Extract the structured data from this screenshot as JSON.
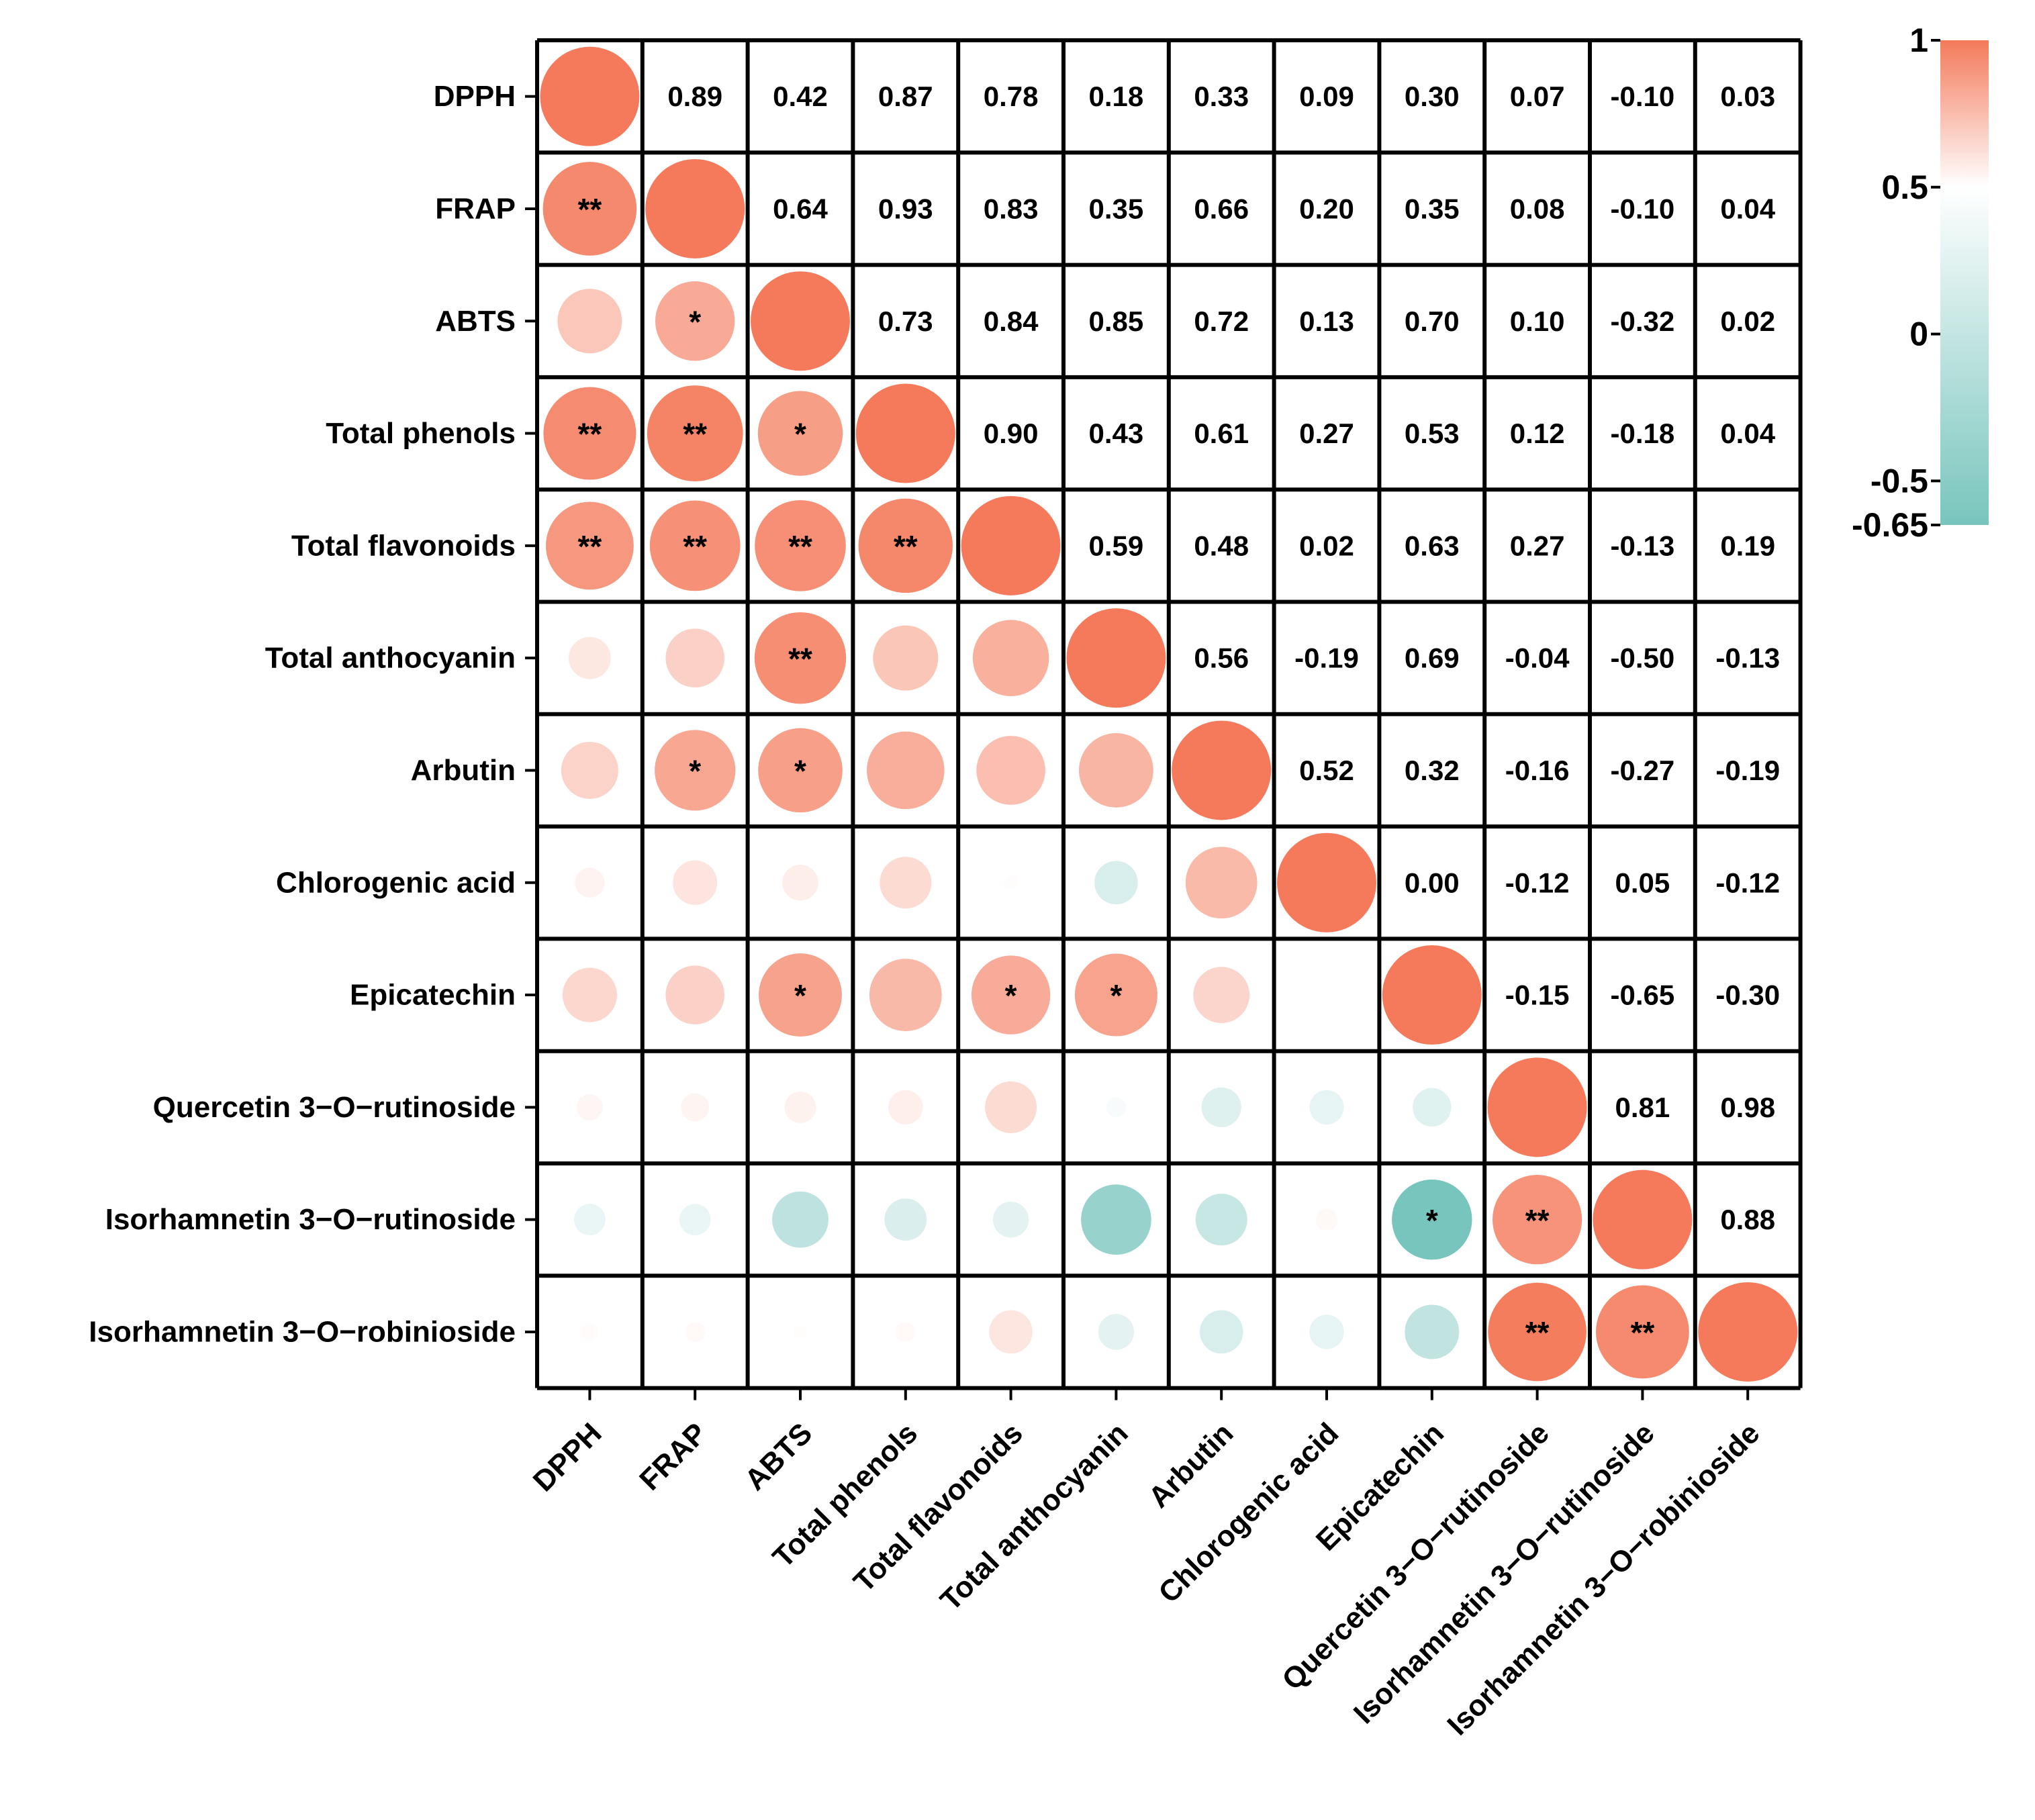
{
  "chart_data": {
    "type": "heatmap",
    "variables": [
      "DPPH",
      "FRAP",
      "ABTS",
      "Total phenols",
      "Total flavonoids",
      "Total anthocyanin",
      "Arbutin",
      "Chlorogenic acid",
      "Epicatechin",
      "Quercetin 3−O−rutinoside",
      "Isorhamnetin 3−O−rutinoside",
      "Isorhamnetin 3−O−robinioside"
    ],
    "matrix": [
      [
        1.0,
        0.89,
        0.42,
        0.87,
        0.78,
        0.18,
        0.33,
        0.09,
        0.3,
        0.07,
        -0.1,
        0.03
      ],
      [
        0.89,
        1.0,
        0.64,
        0.93,
        0.83,
        0.35,
        0.66,
        0.2,
        0.35,
        0.08,
        -0.1,
        0.04
      ],
      [
        0.42,
        0.64,
        1.0,
        0.73,
        0.84,
        0.85,
        0.72,
        0.13,
        0.7,
        0.1,
        -0.32,
        0.02
      ],
      [
        0.87,
        0.93,
        0.73,
        1.0,
        0.9,
        0.43,
        0.61,
        0.27,
        0.53,
        0.12,
        -0.18,
        0.04
      ],
      [
        0.78,
        0.83,
        0.84,
        0.9,
        1.0,
        0.59,
        0.48,
        0.02,
        0.63,
        0.27,
        -0.13,
        0.19
      ],
      [
        0.18,
        0.35,
        0.85,
        0.43,
        0.59,
        1.0,
        0.56,
        -0.19,
        0.69,
        -0.04,
        -0.5,
        -0.13
      ],
      [
        0.33,
        0.66,
        0.72,
        0.61,
        0.48,
        0.56,
        1.0,
        0.52,
        0.32,
        -0.16,
        -0.27,
        -0.19
      ],
      [
        0.09,
        0.2,
        0.13,
        0.27,
        0.02,
        -0.19,
        0.52,
        1.0,
        0.0,
        -0.12,
        0.05,
        -0.12
      ],
      [
        0.3,
        0.35,
        0.7,
        0.53,
        0.63,
        0.69,
        0.32,
        0.0,
        1.0,
        -0.15,
        -0.65,
        -0.3
      ],
      [
        0.07,
        0.08,
        0.1,
        0.12,
        0.27,
        -0.04,
        -0.16,
        -0.12,
        -0.15,
        1.0,
        0.81,
        0.98
      ],
      [
        -0.1,
        -0.1,
        -0.32,
        -0.18,
        -0.13,
        -0.5,
        -0.27,
        0.05,
        -0.65,
        0.81,
        1.0,
        0.88
      ],
      [
        0.03,
        0.04,
        0.02,
        0.04,
        0.19,
        -0.13,
        -0.19,
        -0.12,
        -0.3,
        0.98,
        0.88,
        1.0
      ]
    ],
    "significance": [
      [
        "",
        "",
        "",
        "",
        "",
        "",
        "",
        "",
        "",
        "",
        "",
        ""
      ],
      [
        "**",
        "",
        "",
        "",
        "",
        "",
        "",
        "",
        "",
        "",
        "",
        ""
      ],
      [
        "",
        "*",
        "",
        "",
        "",
        "",
        "",
        "",
        "",
        "",
        "",
        ""
      ],
      [
        "**",
        "**",
        "*",
        "",
        "",
        "",
        "",
        "",
        "",
        "",
        "",
        ""
      ],
      [
        "**",
        "**",
        "**",
        "**",
        "",
        "",
        "",
        "",
        "",
        "",
        "",
        ""
      ],
      [
        "",
        "",
        "**",
        "",
        "",
        "",
        "",
        "",
        "",
        "",
        "",
        ""
      ],
      [
        "",
        "*",
        "*",
        "",
        "",
        "",
        "",
        "",
        "",
        "",
        "",
        ""
      ],
      [
        "",
        "",
        "",
        "",
        "",
        "",
        "",
        "",
        "",
        "",
        "",
        ""
      ],
      [
        "",
        "",
        "*",
        "",
        "*",
        "*",
        "",
        "",
        "",
        "",
        "",
        ""
      ],
      [
        "",
        "",
        "",
        "",
        "",
        "",
        "",
        "",
        "",
        "",
        "",
        ""
      ],
      [
        "",
        "",
        "",
        "",
        "",
        "",
        "",
        "",
        "*",
        "**",
        "",
        ""
      ],
      [
        "",
        "",
        "",
        "",
        "",
        "",
        "",
        "",
        "",
        "**",
        "**",
        ""
      ]
    ],
    "lower_triangle": "circles",
    "upper_triangle": "values",
    "colorbar": {
      "min": -0.65,
      "max": 1,
      "ticks": [
        1,
        0.5,
        0,
        -0.5,
        -0.65
      ],
      "tick_labels": [
        "1",
        "0.5",
        "0",
        "-0.5",
        "-0.65"
      ],
      "colors": {
        "positive": "#F47A5B",
        "zero": "#FFFFFF",
        "negative": "#78C5BD"
      }
    }
  }
}
